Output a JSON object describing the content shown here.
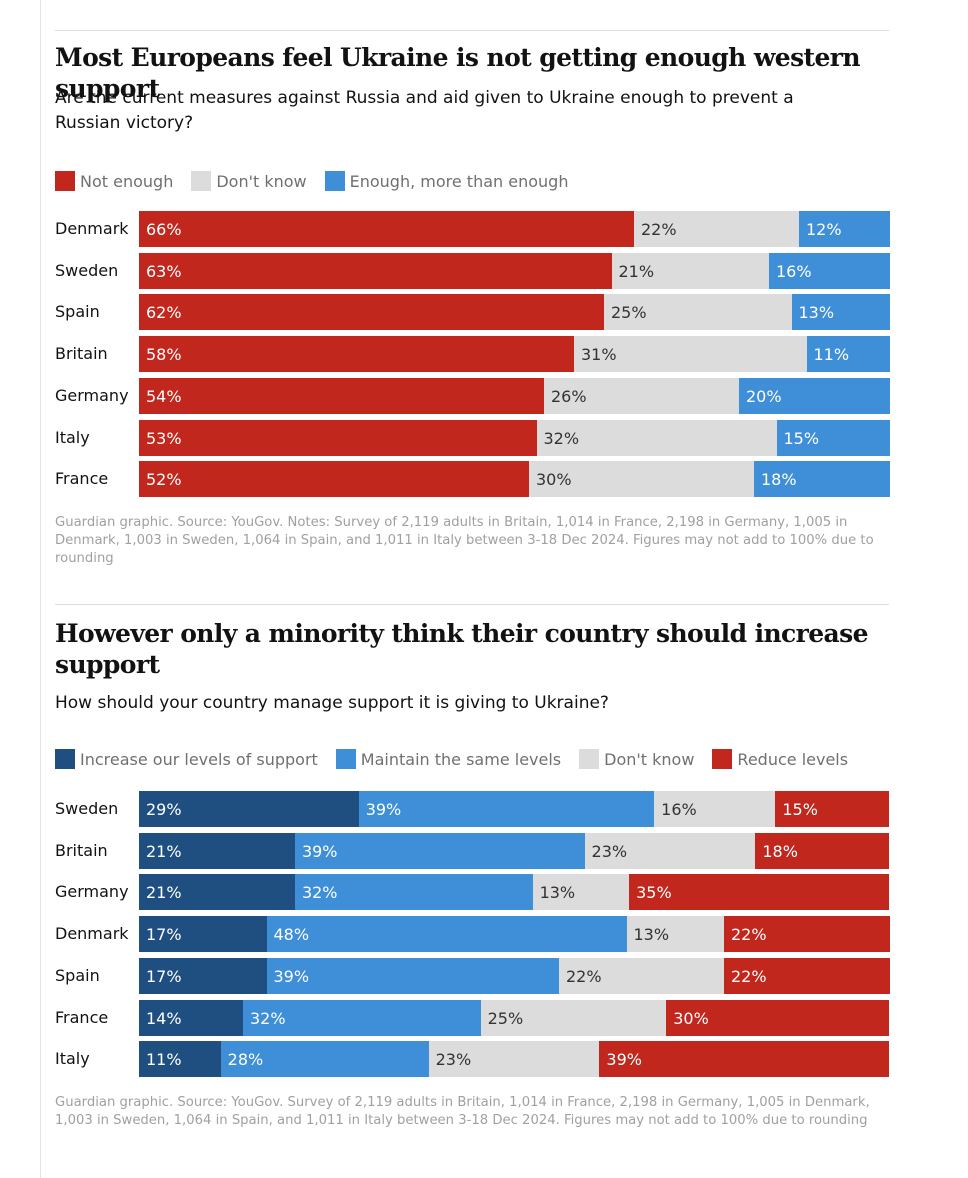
{
  "charts": [
    {
      "title": "Most Europeans feel Ukraine is not getting enough western support",
      "subtitle": "Are the current measures against Russia and aid given to Ukraine enough to prevent a Russian victory?",
      "note": "Guardian graphic. Source: YouGov. Notes: Survey of 2,119 adults in Britain, 1,014 in France, 2,198 in Germany, 1,005 in Denmark, 1,003 in Sweden, 1,064 in Spain, and 1,011 in Italy between 3-18 Dec 2024. Figures may not add to 100% due to rounding"
    },
    {
      "title": "However only a minority think their country should increase support",
      "subtitle": "How should your country manage support it is giving to Ukraine?",
      "note": "Guardian graphic. Source: YouGov. Survey of 2,119 adults in Britain, 1,014 in France, 2,198 in Germany, 1,005 in Denmark, 1,003 in Sweden, 1,064 in Spain, and 1,011 in Italy between 3-18 Dec 2024. Figures may not add to 100% due to rounding"
    }
  ],
  "chart_data": [
    {
      "type": "bar",
      "orientation": "horizontal",
      "stacked": true,
      "title": "Most Europeans feel Ukraine is not getting enough western support",
      "subtitle": "Are the current measures against Russia and aid given to Ukraine enough to prevent a Russian victory?",
      "xlabel": "",
      "ylabel": "",
      "xlim": [
        0,
        100
      ],
      "legend_position": "top-left",
      "grid": false,
      "categories": [
        "Denmark",
        "Sweden",
        "Spain",
        "Britain",
        "Germany",
        "Italy",
        "France"
      ],
      "series": [
        {
          "name": "Not enough",
          "color": "#c1271d",
          "text_color": "#ffffff",
          "values": [
            66,
            63,
            62,
            58,
            54,
            53,
            52
          ]
        },
        {
          "name": "Don't know",
          "color": "#dcdcdc",
          "text_color": "#333333",
          "values": [
            22,
            21,
            25,
            31,
            26,
            32,
            30
          ]
        },
        {
          "name": "Enough, more than enough",
          "color": "#3e8fd8",
          "text_color": "#ffffff",
          "values": [
            12,
            16,
            13,
            11,
            20,
            15,
            18
          ]
        }
      ]
    },
    {
      "type": "bar",
      "orientation": "horizontal",
      "stacked": true,
      "title": "However only a minority think their country should increase support",
      "subtitle": "How should your country manage support it is giving to Ukraine?",
      "xlabel": "",
      "ylabel": "",
      "xlim": [
        0,
        100
      ],
      "legend_position": "top-left",
      "grid": false,
      "categories": [
        "Sweden",
        "Britain",
        "Germany",
        "Denmark",
        "Spain",
        "France",
        "Italy"
      ],
      "series": [
        {
          "name": "Increase our levels of support",
          "color": "#1f4f80",
          "text_color": "#ffffff",
          "values": [
            29,
            21,
            21,
            17,
            17,
            14,
            11
          ]
        },
        {
          "name": "Maintain the same levels",
          "color": "#3e8fd8",
          "text_color": "#ffffff",
          "values": [
            39,
            39,
            32,
            48,
            39,
            32,
            28
          ]
        },
        {
          "name": "Don't know",
          "color": "#dcdcdc",
          "text_color": "#333333",
          "values": [
            16,
            23,
            13,
            13,
            22,
            25,
            23
          ]
        },
        {
          "name": "Reduce levels",
          "color": "#c1271d",
          "text_color": "#ffffff",
          "values": [
            15,
            18,
            35,
            22,
            22,
            30,
            39
          ]
        }
      ]
    }
  ]
}
